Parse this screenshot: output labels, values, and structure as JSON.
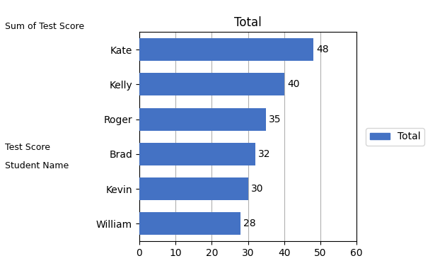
{
  "chart_data": {
    "type": "bar",
    "orientation": "horizontal",
    "title": "Total",
    "categories": [
      "William",
      "Kevin",
      "Brad",
      "Roger",
      "Kelly",
      "Kate"
    ],
    "series": [
      {
        "name": "Total",
        "color": "#4472C4",
        "values": [
          28,
          30,
          32,
          35,
          40,
          48
        ]
      }
    ],
    "xlim": [
      0,
      60
    ],
    "xticks": [
      0,
      10,
      20,
      30,
      40,
      50,
      60
    ],
    "grid": true,
    "legend": "right",
    "data_labels": true,
    "annotations": [
      "Sum of Test Score",
      "Test Score",
      "Student Name"
    ]
  }
}
